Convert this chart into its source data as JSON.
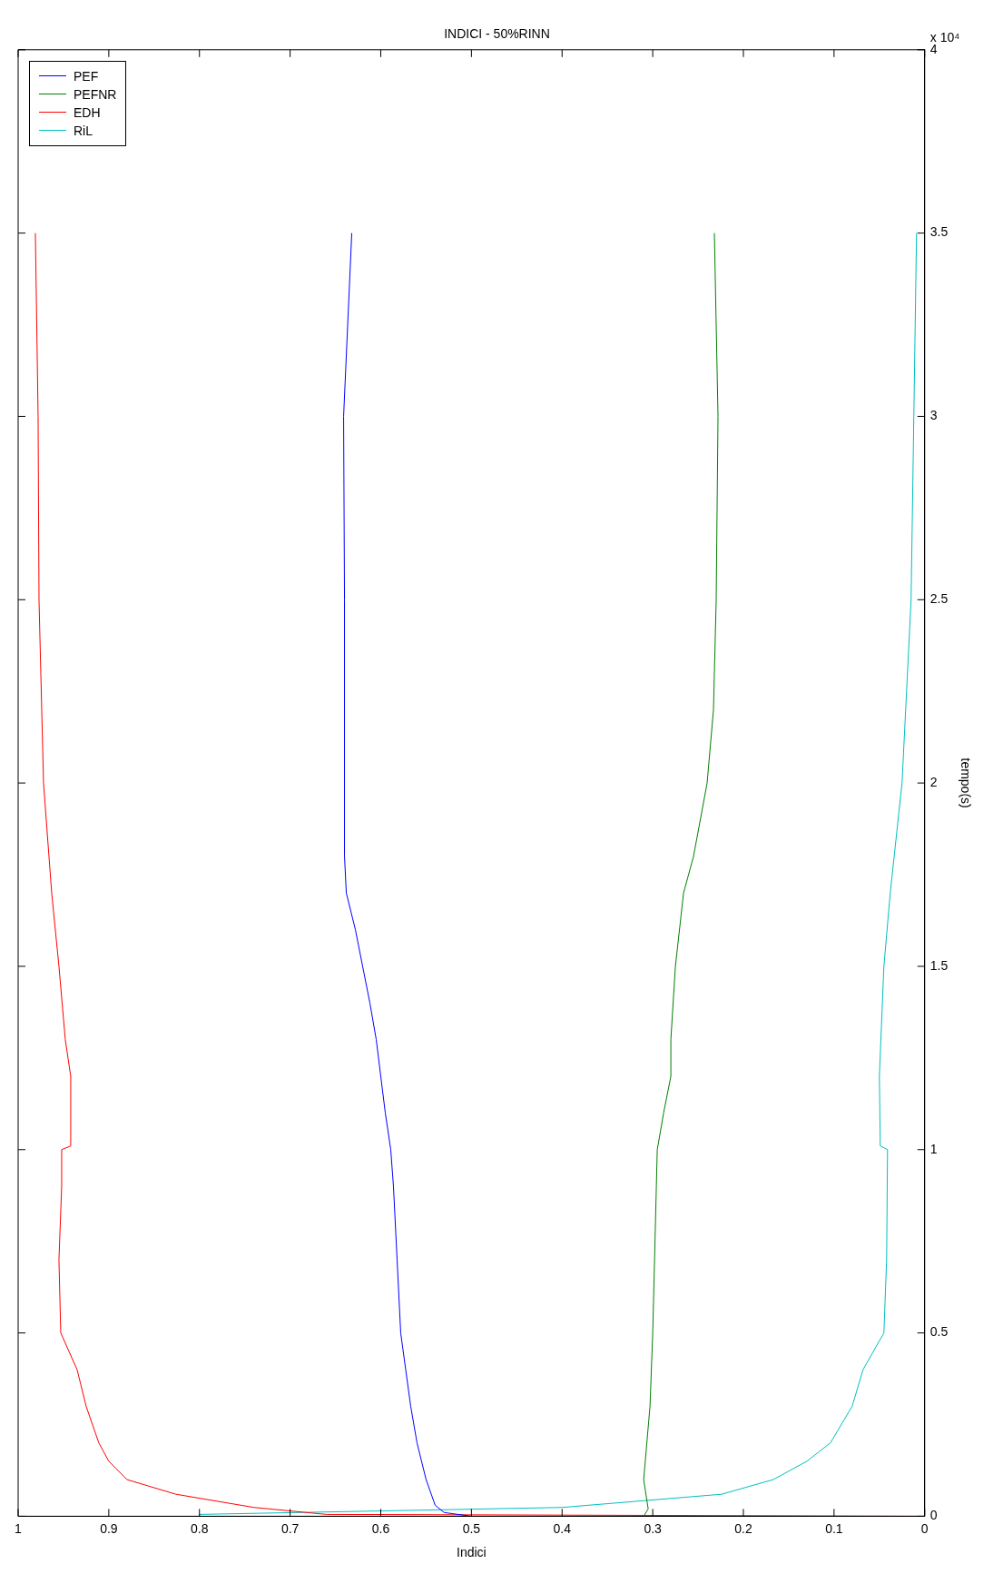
{
  "chart_data": {
    "type": "line",
    "title": "INDICI - 50%RINN",
    "xlabel": "Indici",
    "ylabel": "tempo(s)",
    "annotations": [
      "x 10⁴"
    ],
    "xlim": [
      1,
      0
    ],
    "xticks": [
      0,
      0.1,
      0.2,
      0.3,
      0.4,
      0.5,
      0.6,
      0.7,
      0.8,
      0.9,
      1
    ],
    "ylim": [
      0,
      4
    ],
    "yticks": [
      0,
      0.5,
      1,
      1.5,
      2,
      2.5,
      3,
      3.5,
      4
    ],
    "grid": false,
    "legend": "top left",
    "marker": "none",
    "line_style": "solid",
    "series": [
      {
        "name": "PEF",
        "color": "#0000ff",
        "values": [
          0,
          0.01,
          0.03,
          0.1,
          0.2,
          0.3,
          0.5,
          0.7,
          0.9,
          1,
          1.1,
          1.2,
          1.3,
          1.4,
          1.5,
          1.6,
          1.7,
          1.8,
          2.5,
          3,
          3.5
        ],
        "x": [
          0.5,
          0.53,
          0.54,
          0.55,
          0.56,
          0.567,
          0.578,
          0.582,
          0.586,
          0.589,
          0.595,
          0.6,
          0.605,
          0.612,
          0.62,
          0.628,
          0.638,
          0.64,
          0.64,
          0.641,
          0.632
        ]
      },
      {
        "name": "PEFNR",
        "color": "#008000",
        "values": [
          0,
          0.02,
          0.1,
          0.3,
          0.5,
          0.7,
          1,
          1.1,
          1.2,
          1.3,
          1.5,
          1.7,
          1.8,
          2,
          2.2,
          2.5,
          3,
          3.5
        ],
        "x": [
          0.31,
          0.305,
          0.31,
          0.303,
          0.3,
          0.298,
          0.295,
          0.288,
          0.28,
          0.28,
          0.275,
          0.266,
          0.255,
          0.24,
          0.233,
          0.23,
          0.228,
          0.232
        ]
      },
      {
        "name": "EDH",
        "color": "#ff0000",
        "values": [
          0,
          0.005,
          0.024,
          0.06,
          0.1,
          0.15,
          0.2,
          0.3,
          0.4,
          0.5,
          0.7,
          0.9,
          1,
          1.01,
          1.2,
          1.3,
          1.5,
          1.7,
          2,
          2.5,
          3,
          3.5
        ],
        "x": [
          0,
          0.66,
          0.74,
          0.826,
          0.88,
          0.9,
          0.911,
          0.925,
          0.935,
          0.953,
          0.955,
          0.952,
          0.952,
          0.942,
          0.942,
          0.948,
          0.955,
          0.963,
          0.972,
          0.977,
          0.978,
          0.981
        ]
      },
      {
        "name": "RiL",
        "color": "#00bfbf",
        "values": [
          0,
          0.005,
          0.024,
          0.06,
          0.1,
          0.15,
          0.2,
          0.3,
          0.4,
          0.5,
          0.7,
          1,
          1.01,
          1.2,
          1.5,
          1.7,
          2,
          2.5,
          3,
          3.5
        ],
        "x": [
          0.8,
          0.8,
          0.4,
          0.224,
          0.167,
          0.13,
          0.104,
          0.08,
          0.068,
          0.045,
          0.042,
          0.041,
          0.049,
          0.05,
          0.045,
          0.038,
          0.025,
          0.015,
          0.012,
          0.009
        ]
      }
    ]
  }
}
